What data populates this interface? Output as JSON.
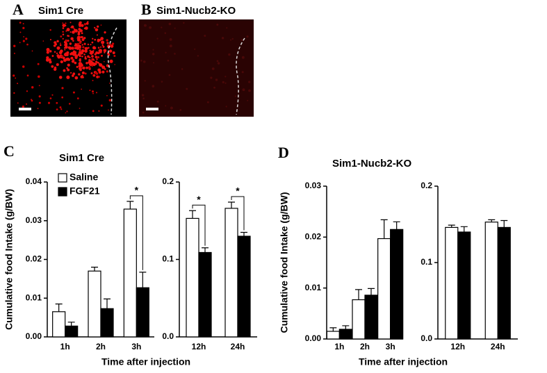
{
  "panels": [
    {
      "label": "A",
      "title": "Sim1 Cre"
    },
    {
      "label": "B",
      "title": "Sim1-Nucb2-KO"
    }
  ],
  "chart_data": [
    {
      "type": "bar",
      "panel_label": "C",
      "title": "Sim1 Cre",
      "ylabel": "Cumulative food  Intake (g/BW)",
      "xlabel": "Time after injection",
      "categories": [
        "1h",
        "2h",
        "3h"
      ],
      "series": [
        {
          "name": "Saline",
          "color": "#ffffff",
          "values": [
            0.0065,
            0.017,
            0.033
          ],
          "errors": [
            0.002,
            0.001,
            0.002
          ]
        },
        {
          "name": "FGF21",
          "color": "#000000",
          "values": [
            0.0028,
            0.0073,
            0.0127
          ],
          "errors": [
            0.001,
            0.0025,
            0.004
          ]
        }
      ],
      "significance": [
        null,
        null,
        "*"
      ],
      "ylim": [
        0,
        0.04
      ],
      "yticks": [
        {
          "value": 0,
          "label": "0.00"
        },
        {
          "value": 0.01,
          "label": "0.01"
        },
        {
          "value": 0.02,
          "label": "0.02"
        },
        {
          "value": 0.03,
          "label": "0.03"
        },
        {
          "value": 0.04,
          "label": "0.04"
        }
      ]
    },
    {
      "type": "bar",
      "categories": [
        "12h",
        "24h"
      ],
      "series": [
        {
          "color": "#ffffff",
          "values": [
            0.153,
            0.166
          ],
          "errors": [
            0.01,
            0.008
          ]
        },
        {
          "color": "#000000",
          "values": [
            0.109,
            0.13
          ],
          "errors": [
            0.006,
            0.005
          ]
        }
      ],
      "significance": [
        "*",
        "*"
      ],
      "ylim": [
        0,
        0.2
      ],
      "yticks": [
        {
          "value": 0,
          "label": "0.0"
        },
        {
          "value": 0.1,
          "label": "0.1"
        },
        {
          "value": 0.2,
          "label": "0.2"
        }
      ]
    },
    {
      "type": "bar",
      "panel_label": "D",
      "title": "Sim1-Nucb2-KO",
      "ylabel": "Cumulative food  Intake (g/BW)",
      "xlabel": "Time after injection",
      "categories": [
        "1h",
        "2h",
        "3h"
      ],
      "series": [
        {
          "color": "#ffffff",
          "values": [
            0.0015,
            0.0077,
            0.0197
          ],
          "errors": [
            0.0007,
            0.002,
            0.0037
          ]
        },
        {
          "color": "#000000",
          "values": [
            0.0019,
            0.0086,
            0.0215
          ],
          "errors": [
            0.0007,
            0.0013,
            0.0015
          ]
        }
      ],
      "ylim": [
        0,
        0.03
      ],
      "yticks": [
        {
          "value": 0,
          "label": "0.00"
        },
        {
          "value": 0.01,
          "label": "0.01"
        },
        {
          "value": 0.02,
          "label": "0.02"
        },
        {
          "value": 0.03,
          "label": "0.03"
        }
      ]
    },
    {
      "type": "bar",
      "categories": [
        "12h",
        "24h"
      ],
      "series": [
        {
          "color": "#ffffff",
          "values": [
            0.146,
            0.153
          ],
          "errors": [
            0.003,
            0.003
          ]
        },
        {
          "color": "#000000",
          "values": [
            0.14,
            0.146
          ],
          "errors": [
            0.007,
            0.009
          ]
        }
      ],
      "ylim": [
        0,
        0.2
      ],
      "yticks": [
        {
          "value": 0,
          "label": "0.0"
        },
        {
          "value": 0.1,
          "label": "0.1"
        },
        {
          "value": 0.2,
          "label": "0.2"
        }
      ]
    }
  ]
}
